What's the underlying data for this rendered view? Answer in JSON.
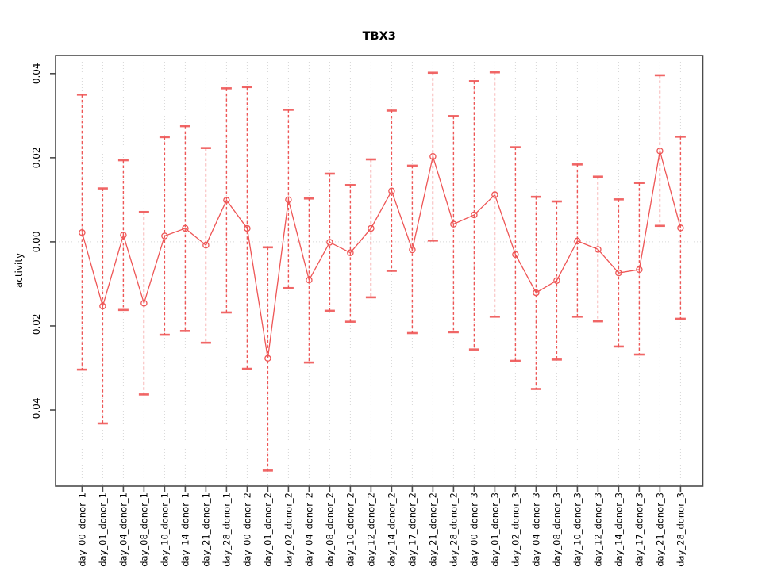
{
  "window": {
    "background": "#ffffff"
  },
  "chart_data": {
    "type": "scatter",
    "subtype": "points-with-error-bars",
    "title": "TBX3",
    "xlabel": "",
    "ylabel": "activity",
    "x_labels": [
      "day_00_donor_1",
      "day_01_donor_1",
      "day_04_donor_1",
      "day_08_donor_1",
      "day_10_donor_1",
      "day_14_donor_1",
      "day_21_donor_1",
      "day_28_donor_1",
      "day_00_donor_2",
      "day_01_donor_2",
      "day_02_donor_2",
      "day_04_donor_2",
      "day_08_donor_2",
      "day_10_donor_2",
      "day_12_donor_2",
      "day_14_donor_2",
      "day_17_donor_2",
      "day_21_donor_2",
      "day_28_donor_2",
      "day_00_donor_3",
      "day_01_donor_3",
      "day_02_donor_3",
      "day_04_donor_3",
      "day_08_donor_3",
      "day_10_donor_3",
      "day_12_donor_3",
      "day_14_donor_3",
      "day_17_donor_3",
      "day_21_donor_3",
      "day_28_donor_3"
    ],
    "series": [
      {
        "name": "activity",
        "values": [
          0.0022,
          -0.0153,
          0.0016,
          -0.0146,
          0.0014,
          0.0032,
          -0.0008,
          0.0099,
          0.0032,
          -0.0277,
          0.01,
          -0.0091,
          -0.0001,
          -0.0026,
          0.0032,
          0.0121,
          -0.0019,
          0.0203,
          0.0042,
          0.0064,
          0.0112,
          -0.003,
          -0.0121,
          -0.0092,
          0.0002,
          -0.0018,
          -0.0074,
          -0.0066,
          0.0216,
          0.0033
        ],
        "error_high": [
          0.035,
          0.0127,
          0.0194,
          0.0071,
          0.0249,
          0.0275,
          0.0223,
          0.0365,
          0.0368,
          -0.0013,
          0.0314,
          0.0103,
          0.0162,
          0.0135,
          0.0196,
          0.0312,
          0.0181,
          0.0402,
          0.0299,
          0.0382,
          0.0403,
          0.0225,
          0.0107,
          0.0096,
          0.0184,
          0.0155,
          0.0101,
          0.014,
          0.0396,
          0.025
        ],
        "error_low": [
          -0.0304,
          -0.0432,
          -0.0162,
          -0.0363,
          -0.0221,
          -0.0212,
          -0.024,
          -0.0168,
          -0.0302,
          -0.0544,
          -0.011,
          -0.0287,
          -0.0164,
          -0.019,
          -0.0132,
          -0.0069,
          -0.0217,
          0.0003,
          -0.0215,
          -0.0256,
          -0.0178,
          -0.0283,
          -0.035,
          -0.028,
          -0.0178,
          -0.0189,
          -0.0249,
          -0.0268,
          0.0038,
          -0.0183
        ]
      }
    ],
    "y_ticks": [
      0.04,
      0.02,
      0,
      -0.02,
      -0.04
    ],
    "y_tick_labels": [
      "0.04",
      "0.02",
      "0.00",
      "-0.02",
      "-0.04"
    ],
    "ylim": [
      -0.0581,
      0.0443
    ],
    "grid": {
      "vertical_dotted": true,
      "zero_line_dotted": true,
      "horizontal_gridlines": false
    },
    "legend": null,
    "colors": {
      "series": "#ee5555",
      "grid": "#d6d6d6",
      "axis": "#4b4b4b",
      "text": "#000000",
      "background": "#ffffff"
    }
  }
}
